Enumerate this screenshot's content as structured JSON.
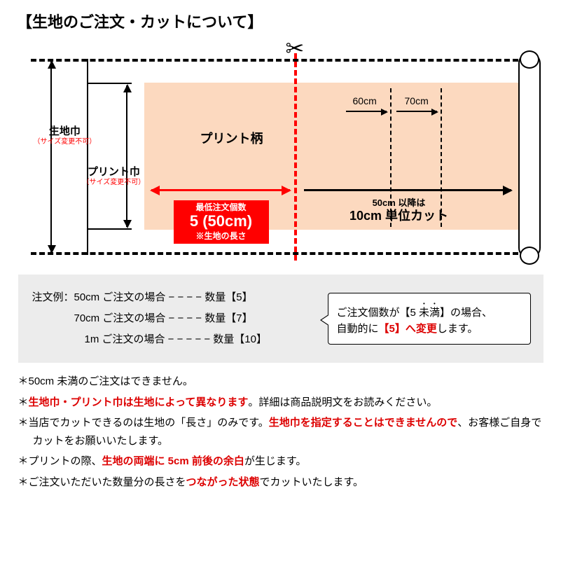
{
  "title": "【生地のご注文・カットについて】",
  "diagram": {
    "print_label": "プリント柄",
    "left_labels": {
      "fabric_width": "生地巾",
      "fabric_width_note": "（サイズ変更不可）",
      "print_width": "プリント巾",
      "print_width_note": "（サイズ変更不可）"
    },
    "min_order": {
      "line1": "最低注文個数",
      "line2": "5 (50cm)",
      "line3": "※生地の長さ"
    },
    "right_cut": {
      "line1": "50cm 以降は",
      "line2": "10cm 単位カット"
    },
    "sm60": "60cm",
    "sm70": "70cm",
    "colors": {
      "print_bg": "#fcd9bf",
      "cut_line": "red",
      "min_box_bg": "red"
    }
  },
  "examples": {
    "line1": "注文例：50cm ご注文の場合 − − − − 数量【5】",
    "line2": "　　　　70cm ご注文の場合 − − − − 数量【7】",
    "line3": "　　　　　1m ご注文の場合  − − − − − 数量【10】"
  },
  "speech": {
    "p1a": "ご注文個数が【5 ",
    "p1b": "未満",
    "p1c": "】の場合、",
    "p2a": "自動的に",
    "p2b": "【5】へ変更",
    "p2c": "します。"
  },
  "notes": {
    "n1": "＊50cm 未満のご注文はできません。",
    "n2a": "＊",
    "n2b": "生地巾・プリント巾は生地によって異なります",
    "n2c": "。詳細は商品説明文をお読みください。",
    "n3a": "＊当店でカットできるのは生地の「長さ」のみです。",
    "n3b": "生地巾を指定することはできませんので",
    "n3c": "、お客様ご自身でカットをお願いいたします。",
    "n4a": "＊プリントの際、",
    "n4b": "生地の両端に 5cm 前後の余白",
    "n4c": "が生じます。",
    "n5a": "＊ご注文いただいた数量分の長さを",
    "n5b": "つながった状態",
    "n5c": "でカットいたします。"
  }
}
